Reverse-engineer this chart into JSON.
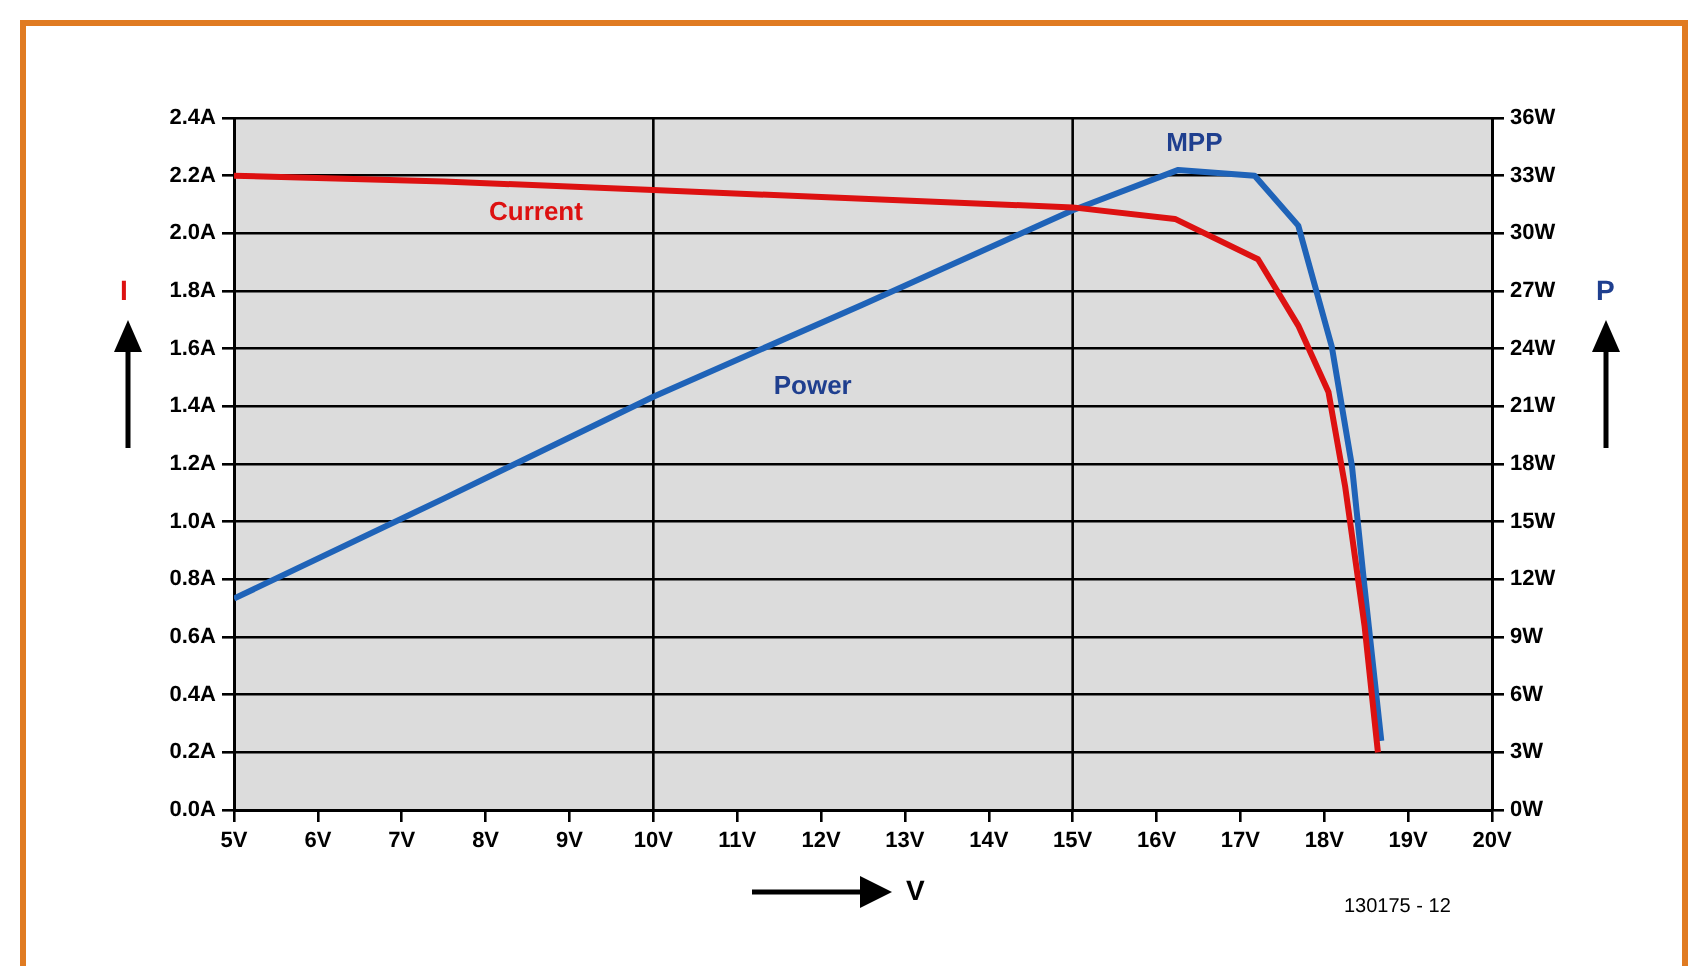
{
  "chart_data": {
    "type": "line",
    "xlabel": "V",
    "ylabel": "I",
    "y2label": "P",
    "series": [
      {
        "name": "Current",
        "color": "#dd1111",
        "x": [
          5,
          7.5,
          10,
          12.5,
          15,
          16.22,
          17.21,
          17.69,
          18.05,
          18.25,
          18.48,
          18.64
        ],
        "values": [
          2.2,
          2.18,
          2.15,
          2.12,
          2.09,
          2.05,
          1.91,
          1.68,
          1.45,
          1.12,
          0.64,
          0.2
        ]
      },
      {
        "name": "Power",
        "color": "#1f63b8",
        "axis": "y2",
        "x": [
          5,
          7.5,
          10,
          12.5,
          15,
          16.26,
          17.17,
          17.69,
          18.09,
          18.33,
          18.48,
          18.68
        ],
        "values": [
          11,
          16.2,
          21.5,
          26.3,
          31.2,
          33.3,
          33.0,
          30.4,
          24.1,
          17.9,
          11.6,
          3.6
        ]
      }
    ],
    "xlim": [
      5,
      20
    ],
    "xticks": [
      {
        "value": 5,
        "label": "5V"
      },
      {
        "value": 6,
        "label": "6V"
      },
      {
        "value": 7,
        "label": "7V"
      },
      {
        "value": 8,
        "label": "8V"
      },
      {
        "value": 9,
        "label": "9V"
      },
      {
        "value": 10,
        "label": "10V"
      },
      {
        "value": 11,
        "label": "11V"
      },
      {
        "value": 12,
        "label": "12V"
      },
      {
        "value": 13,
        "label": "13V"
      },
      {
        "value": 14,
        "label": "14V"
      },
      {
        "value": 15,
        "label": "15V"
      },
      {
        "value": 16,
        "label": "16V"
      },
      {
        "value": 17,
        "label": "17V"
      },
      {
        "value": 18,
        "label": "18V"
      },
      {
        "value": 19,
        "label": "19V"
      },
      {
        "value": 20,
        "label": "20V"
      }
    ],
    "ylim": [
      0,
      2.4
    ],
    "yticks": [
      {
        "value": 0,
        "label": "0.0A"
      },
      {
        "value": 0.2,
        "label": "0.2A"
      },
      {
        "value": 0.4,
        "label": "0.4A"
      },
      {
        "value": 0.6,
        "label": "0.6A"
      },
      {
        "value": 0.8,
        "label": "0.8A"
      },
      {
        "value": 1.0,
        "label": "1.0A"
      },
      {
        "value": 1.2,
        "label": "1.2A"
      },
      {
        "value": 1.4,
        "label": "1.4A"
      },
      {
        "value": 1.6,
        "label": "1.6A"
      },
      {
        "value": 1.8,
        "label": "1.8A"
      },
      {
        "value": 2.0,
        "label": "2.0A"
      },
      {
        "value": 2.2,
        "label": "2.2A"
      },
      {
        "value": 2.4,
        "label": "2.4A"
      }
    ],
    "y2lim": [
      0,
      36
    ],
    "y2ticks": [
      {
        "value": 0,
        "label": "0W"
      },
      {
        "value": 3,
        "label": "3W"
      },
      {
        "value": 6,
        "label": "6W"
      },
      {
        "value": 9,
        "label": "9W"
      },
      {
        "value": 12,
        "label": "12W"
      },
      {
        "value": 15,
        "label": "15W"
      },
      {
        "value": 18,
        "label": "18W"
      },
      {
        "value": 21,
        "label": "21W"
      },
      {
        "value": 24,
        "label": "24W"
      },
      {
        "value": 27,
        "label": "27W"
      },
      {
        "value": 30,
        "label": "30W"
      },
      {
        "value": 33,
        "label": "33W"
      },
      {
        "value": 36,
        "label": "36W"
      }
    ],
    "grid": "y",
    "ref_lines": [
      {
        "axis": "x",
        "value": 10,
        "color": "#000000"
      },
      {
        "axis": "x",
        "value": 15,
        "color": "#000000"
      }
    ],
    "annotations": [
      "MPP",
      "130175 - 12"
    ],
    "legend": false
  }
}
